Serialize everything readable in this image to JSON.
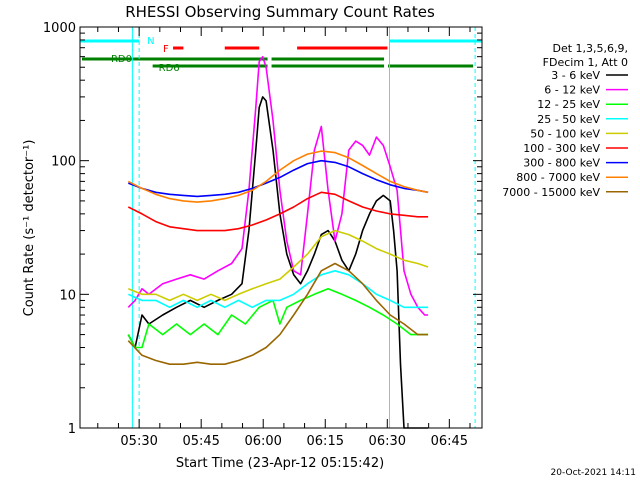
{
  "chart_data": {
    "type": "line",
    "title": "RHESSI Observing Summary Count Rates",
    "xlabel": "Start Time (23-Apr-12 05:15:42)",
    "ylabel": "Count Rate (s⁻¹ detector⁻¹)",
    "y_scale": "log",
    "ylim": [
      1,
      1000
    ],
    "xlim": [
      0,
      5832
    ],
    "x_unit": "seconds since 05:15:42",
    "x_ticks": [
      {
        "label": "05:30",
        "value": 858
      },
      {
        "label": "05:45",
        "value": 1758
      },
      {
        "label": "06:00",
        "value": 2658
      },
      {
        "label": "06:15",
        "value": 3558
      },
      {
        "label": "06:30",
        "value": 4458
      },
      {
        "label": "06:45",
        "value": 5358
      }
    ],
    "y_ticks": [
      {
        "label": "1",
        "value": 1
      },
      {
        "label": "10",
        "value": 10
      },
      {
        "label": "100",
        "value": 100
      },
      {
        "label": "1000",
        "value": 1000
      }
    ],
    "legend_header": [
      "Det 1,3,5,6,9,",
      "FDecim 1, Att 0"
    ],
    "series": [
      {
        "name": "3 - 6 keV",
        "color": "#000000",
        "x": [
          700,
          800,
          900,
          1000,
          1200,
          1400,
          1600,
          1800,
          2000,
          2200,
          2350,
          2450,
          2550,
          2600,
          2650,
          2700,
          2800,
          2900,
          3000,
          3100,
          3200,
          3300,
          3400,
          3500,
          3600,
          3700,
          3800,
          3900,
          4000,
          4100,
          4200,
          4300,
          4400,
          4500,
          4550,
          4600,
          4650,
          4700,
          4750,
          4800,
          4900,
          5000,
          5050
        ],
        "values": [
          5,
          4,
          7,
          6,
          7,
          8,
          9,
          8,
          9,
          10,
          12,
          30,
          120,
          250,
          300,
          280,
          120,
          40,
          20,
          14,
          12,
          15,
          20,
          28,
          30,
          25,
          18,
          15,
          20,
          30,
          40,
          50,
          55,
          50,
          30,
          15,
          3,
          1,
          1,
          1,
          1,
          1,
          1
        ]
      },
      {
        "name": "6 - 12 keV",
        "color": "#ff00ff",
        "x": [
          700,
          800,
          900,
          1000,
          1200,
          1400,
          1600,
          1800,
          2000,
          2200,
          2350,
          2450,
          2550,
          2600,
          2650,
          2700,
          2800,
          2900,
          3000,
          3100,
          3200,
          3300,
          3400,
          3500,
          3600,
          3700,
          3800,
          3900,
          4000,
          4100,
          4200,
          4300,
          4400,
          4500,
          4600,
          4700,
          4800,
          4900,
          5000,
          5050
        ],
        "values": [
          8,
          9,
          11,
          10,
          12,
          13,
          14,
          13,
          15,
          17,
          22,
          60,
          250,
          550,
          600,
          500,
          200,
          60,
          25,
          15,
          14,
          40,
          120,
          180,
          60,
          25,
          40,
          120,
          140,
          130,
          110,
          150,
          130,
          90,
          60,
          15,
          10,
          8,
          7,
          7
        ]
      },
      {
        "name": "12 - 25 keV",
        "color": "#00ff00",
        "x": [
          700,
          800,
          900,
          1000,
          1200,
          1400,
          1600,
          1800,
          2000,
          2200,
          2400,
          2600,
          2800,
          2900,
          3000,
          3200,
          3400,
          3600,
          3800,
          4000,
          4200,
          4400,
          4600,
          4800,
          5000,
          5050
        ],
        "values": [
          5,
          4,
          4,
          6,
          5,
          6,
          5,
          6,
          5,
          7,
          6,
          8,
          9,
          6,
          8,
          9,
          10,
          11,
          10,
          9,
          8,
          7,
          6,
          5,
          5,
          5
        ]
      },
      {
        "name": "25 - 50 keV",
        "color": "#00ffff",
        "x": [
          700,
          900,
          1100,
          1300,
          1500,
          1700,
          1900,
          2100,
          2300,
          2500,
          2700,
          2900,
          3100,
          3300,
          3500,
          3700,
          3900,
          4100,
          4300,
          4500,
          4700,
          4900,
          5050
        ],
        "values": [
          10,
          9,
          9,
          8,
          9,
          8,
          9,
          8,
          9,
          8,
          9,
          9,
          10,
          12,
          14,
          15,
          14,
          12,
          10,
          9,
          8,
          8,
          8
        ]
      },
      {
        "name": "50 - 100 keV",
        "color": "#cccc00",
        "x": [
          700,
          900,
          1100,
          1300,
          1500,
          1700,
          1900,
          2100,
          2300,
          2500,
          2700,
          2900,
          3100,
          3300,
          3500,
          3700,
          3900,
          4100,
          4300,
          4500,
          4700,
          4900,
          5050
        ],
        "values": [
          11,
          10,
          10,
          9,
          10,
          9,
          10,
          9,
          10,
          11,
          12,
          13,
          16,
          20,
          27,
          30,
          28,
          25,
          22,
          20,
          18,
          17,
          16
        ]
      },
      {
        "name": "100 - 300 keV",
        "color": "#ff0000",
        "x": [
          700,
          900,
          1100,
          1300,
          1500,
          1700,
          1900,
          2100,
          2300,
          2500,
          2700,
          2900,
          3100,
          3300,
          3500,
          3700,
          3900,
          4100,
          4300,
          4500,
          4700,
          4900,
          5050
        ],
        "values": [
          45,
          40,
          35,
          32,
          31,
          30,
          30,
          30,
          31,
          33,
          36,
          40,
          45,
          52,
          58,
          56,
          50,
          45,
          42,
          40,
          39,
          38,
          38
        ]
      },
      {
        "name": "300 - 800 keV",
        "color": "#0000ff",
        "x": [
          700,
          900,
          1100,
          1300,
          1500,
          1700,
          1900,
          2100,
          2300,
          2500,
          2700,
          2900,
          3100,
          3300,
          3500,
          3700,
          3900,
          4100,
          4300,
          4500,
          4700,
          4900,
          5050
        ],
        "values": [
          68,
          62,
          58,
          56,
          55,
          54,
          55,
          56,
          58,
          62,
          68,
          75,
          85,
          95,
          100,
          97,
          90,
          80,
          72,
          66,
          62,
          60,
          58
        ]
      },
      {
        "name": "800 - 7000 keV",
        "color": "#ff8000",
        "x": [
          700,
          900,
          1100,
          1300,
          1500,
          1700,
          1900,
          2100,
          2300,
          2500,
          2700,
          2900,
          3100,
          3300,
          3500,
          3700,
          3900,
          4100,
          4300,
          4500,
          4700,
          4900,
          5050
        ],
        "values": [
          70,
          62,
          56,
          52,
          50,
          49,
          50,
          52,
          55,
          60,
          70,
          85,
          100,
          112,
          118,
          115,
          105,
          92,
          80,
          70,
          64,
          60,
          58
        ]
      },
      {
        "name": "7000 - 15000 keV",
        "color": "#996600",
        "x": [
          700,
          900,
          1100,
          1300,
          1500,
          1700,
          1900,
          2100,
          2300,
          2500,
          2700,
          2900,
          3100,
          3300,
          3500,
          3700,
          3900,
          4100,
          4300,
          4500,
          4700,
          4900,
          5050
        ],
        "values": [
          4.5,
          3.5,
          3.2,
          3,
          3,
          3.1,
          3,
          3,
          3.2,
          3.5,
          4,
          5,
          7,
          10,
          15,
          17,
          15,
          12,
          9,
          7,
          6,
          5,
          5
        ]
      }
    ],
    "annotations": {
      "N_label": "N",
      "F_label": "F",
      "RD0_label": "RD0",
      "RD6_label": "RD6",
      "night_intervals": [
        [
          0,
          858
        ],
        [
          4490,
          5832
        ]
      ],
      "flare_flag_intervals": [
        [
          1350,
          1500
        ],
        [
          2100,
          2600
        ],
        [
          3150,
          4460
        ]
      ],
      "rd0_intervals": [
        [
          0,
          2750
        ],
        [
          2750,
          4440
        ]
      ],
      "rd6_intervals": [
        [
          1025,
          2750
        ],
        [
          2750,
          4440
        ],
        [
          4440,
          5732
        ]
      ],
      "saa_boundaries": [
        760,
        858,
        4490,
        5732
      ]
    }
  },
  "footer": {
    "timestamp": "20-Oct-2021 14:11"
  }
}
